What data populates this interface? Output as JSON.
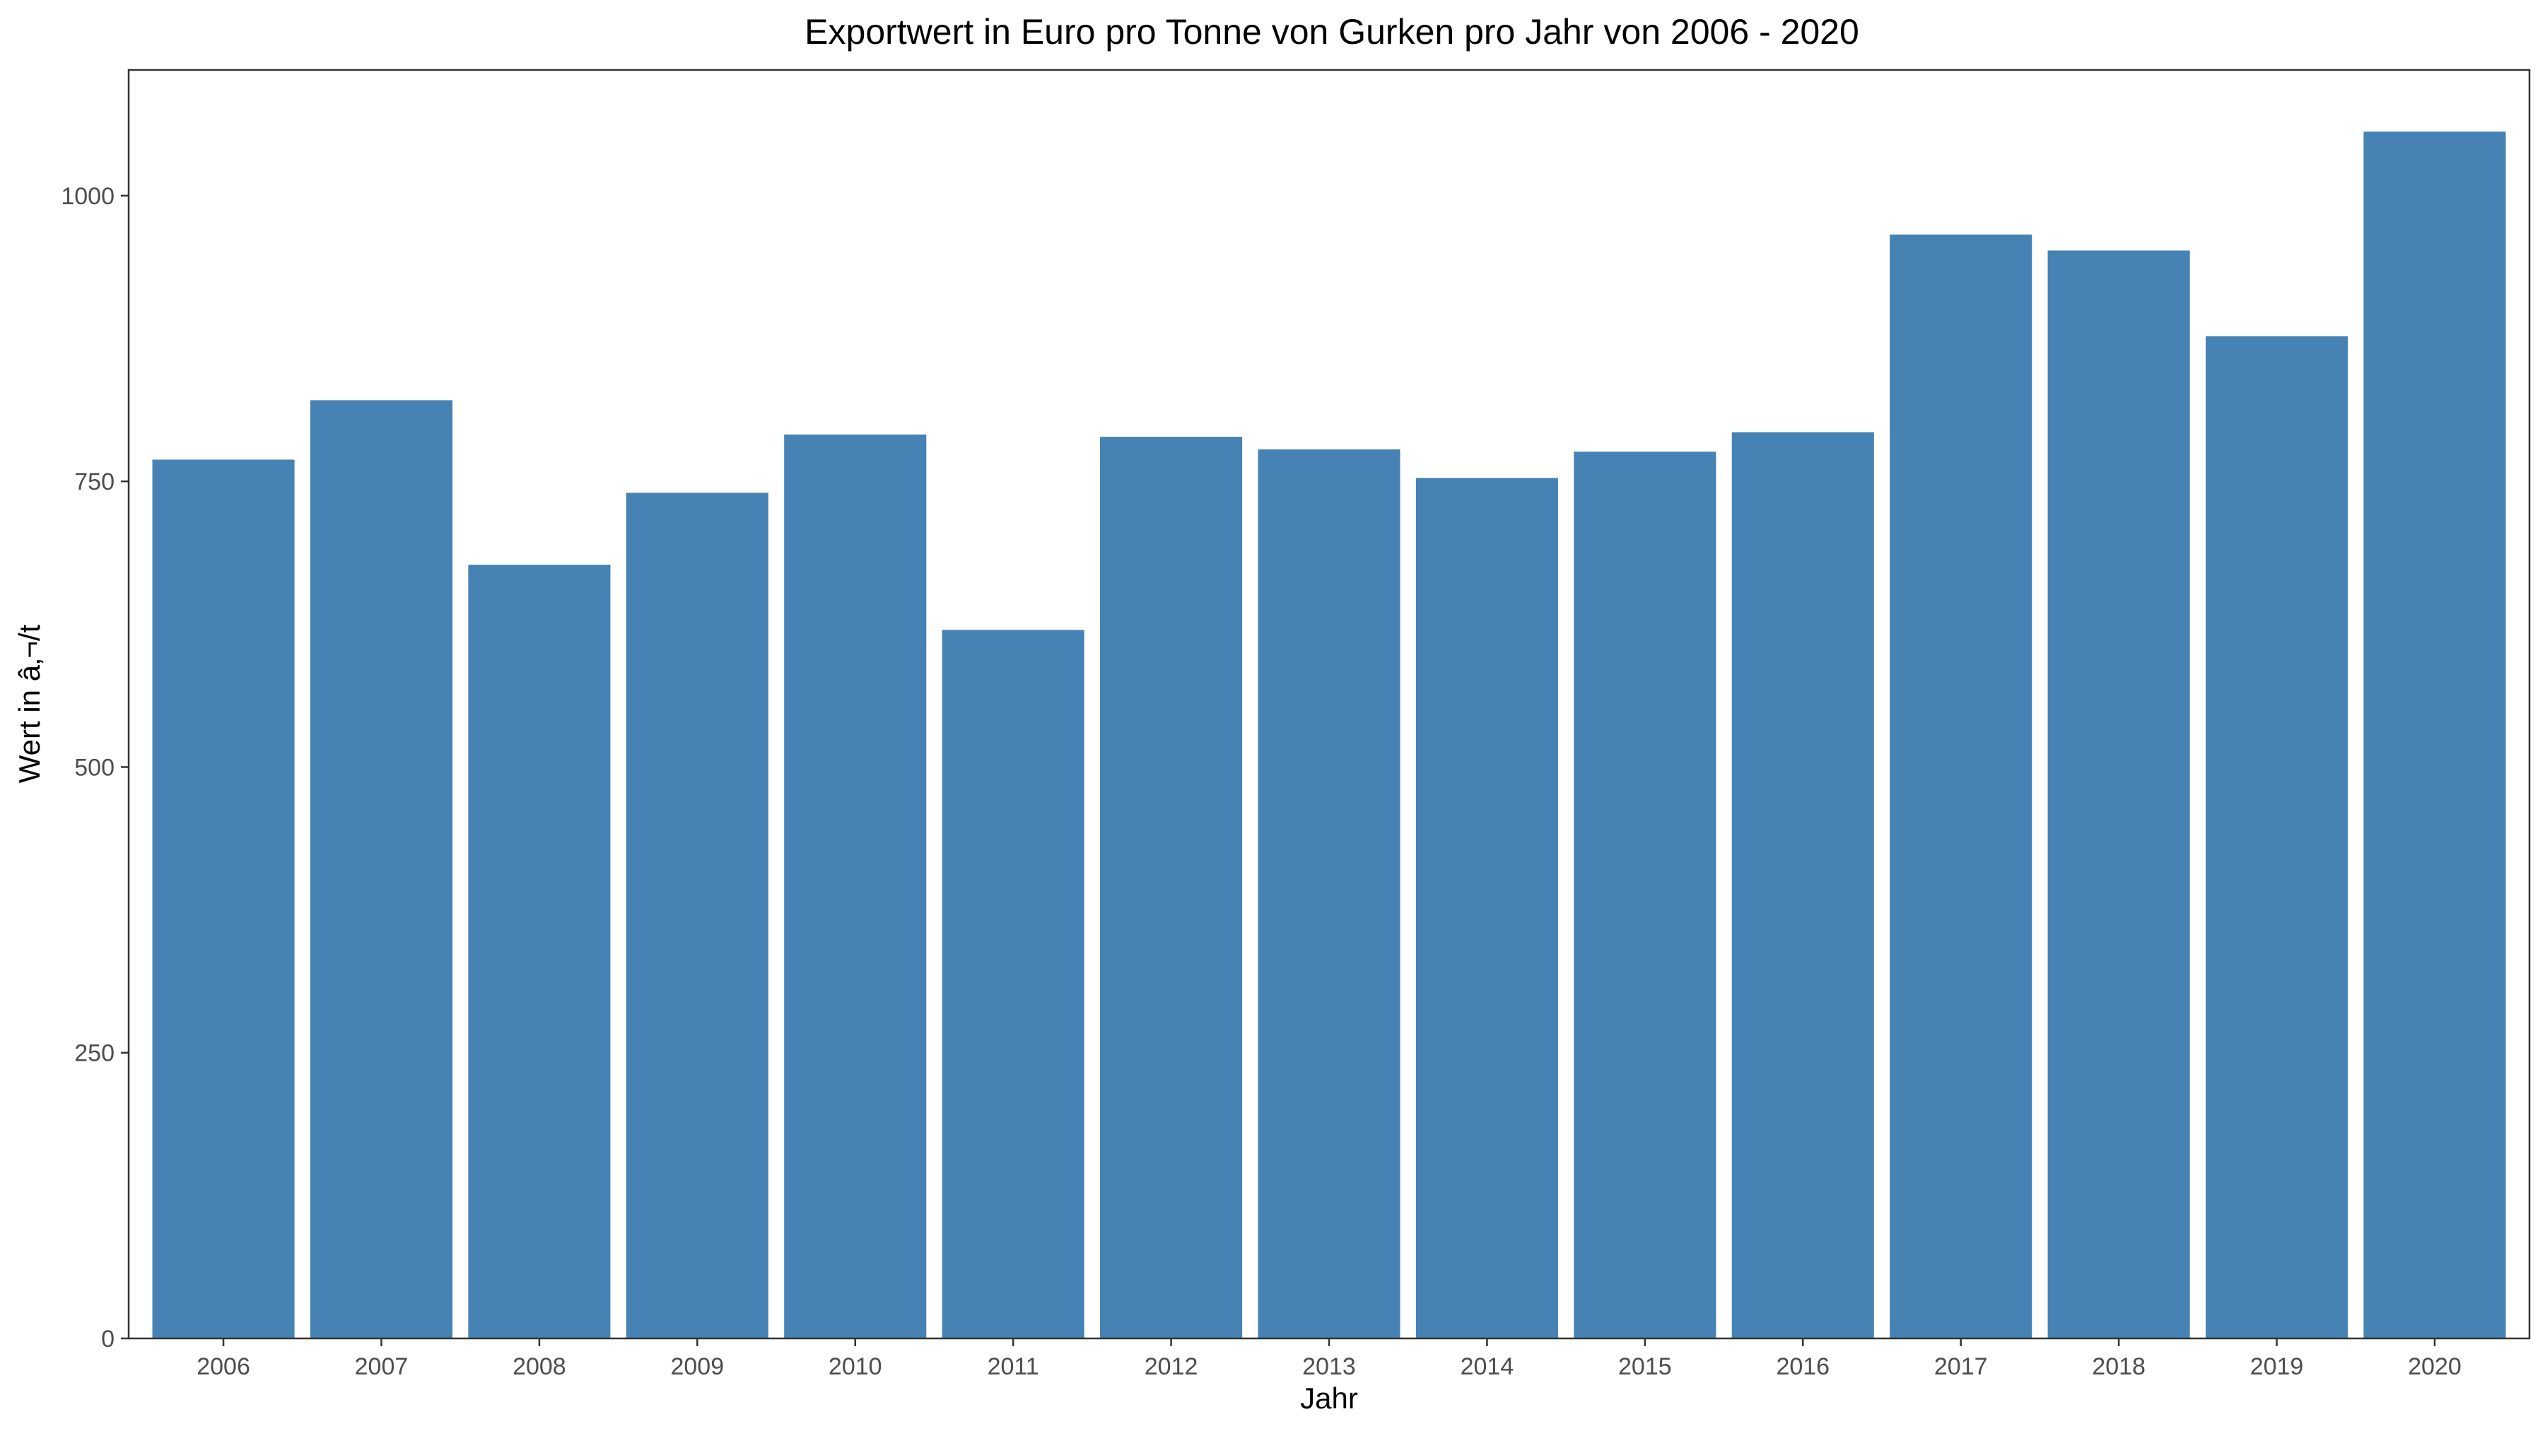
{
  "chart_data": {
    "type": "bar",
    "title": "Exportwert in Euro pro Tonne von Gurken pro Jahr von 2006 - 2020",
    "xlabel": "Jahr",
    "ylabel": "Wert in â‚¬/t",
    "categories": [
      "2006",
      "2007",
      "2008",
      "2009",
      "2010",
      "2011",
      "2012",
      "2013",
      "2014",
      "2015",
      "2016",
      "2017",
      "2018",
      "2019",
      "2020"
    ],
    "values": [
      769,
      821,
      677,
      740,
      791,
      620,
      789,
      778,
      753,
      776,
      793,
      966,
      952,
      877,
      1056
    ],
    "ylim": [
      0,
      1110
    ],
    "yticks": [
      0,
      250,
      500,
      750,
      1000
    ],
    "grid": false,
    "legend": "none",
    "bar_color": "#4682B4"
  }
}
